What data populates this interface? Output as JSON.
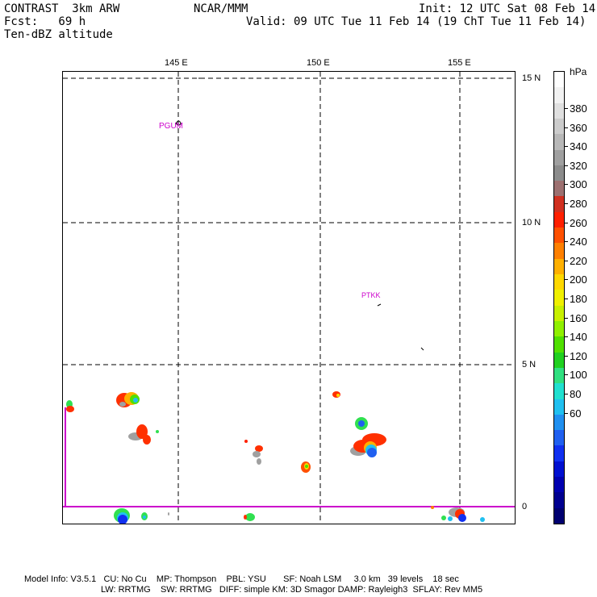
{
  "header": {
    "line1_left": "CONTRAST  3km ARW",
    "line1_mid": "NCAR/MMM",
    "line1_right": "Init: 12 UTC Sat 08 Feb 14",
    "line2_left": "Fcst:   69 h",
    "line2_right": "Valid: 09 UTC Tue 11 Feb 14 (19 ChT Tue 11 Feb 14)",
    "line3_left": "Ten-dBZ altitude"
  },
  "map": {
    "lon_labels": [
      "145 E",
      "150 E",
      "155 E"
    ],
    "lat_labels": [
      "15 N",
      "10 N",
      "5 N",
      "0"
    ],
    "stations": [
      "PGUM",
      "PTKK"
    ],
    "station_color": "#cc00cc",
    "boundary_color": "#cc00cc"
  },
  "colorbar": {
    "unit": "hPa",
    "labels": [
      "380",
      "360",
      "340",
      "320",
      "300",
      "280",
      "260",
      "240",
      "220",
      "200",
      "180",
      "160",
      "140",
      "120",
      "100",
      "80",
      "60"
    ],
    "colors": [
      "#ffffff",
      "#f2f2f2",
      "#e0e0e0",
      "#cccccc",
      "#b8b8b8",
      "#a0a0a0",
      "#8c8c8c",
      "#9c7070",
      "#d03020",
      "#ff2000",
      "#ff5000",
      "#ff8000",
      "#ffb000",
      "#ffd800",
      "#f0f000",
      "#c8f000",
      "#90f000",
      "#50e000",
      "#20d020",
      "#30e080",
      "#20e0d0",
      "#20c0f0",
      "#2090f0",
      "#2060f0",
      "#1030f0",
      "#0010d0",
      "#0000b0",
      "#000090",
      "#000070"
    ]
  },
  "footer": {
    "line1": "Model Info: V3.5.1   CU: No Cu    MP: Thompson    PBL: YSU       SF: Noah LSM     3.0 km   39 levels    18 sec",
    "line2": "LW: RRTMG    SW: RRTMG   DIFF: simple KM: 3D Smagor DAMP: Rayleigh3  SFLAY: Rev MM5"
  }
}
